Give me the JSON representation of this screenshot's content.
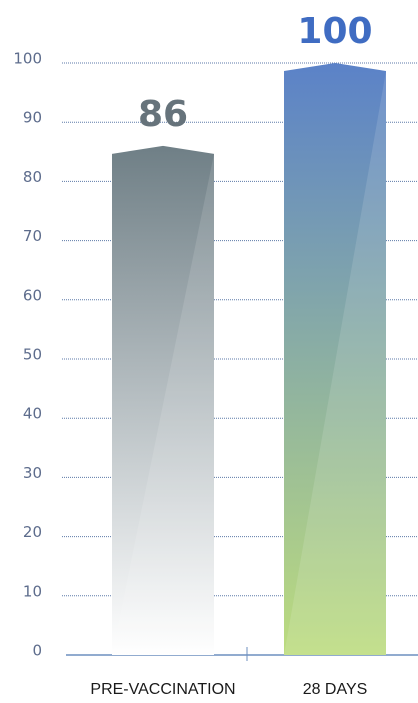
{
  "chart_data": {
    "type": "bar",
    "categories": [
      "PRE-VACCINATION",
      "28 DAYS"
    ],
    "values": [
      86,
      100
    ],
    "bar_gradients": [
      {
        "top": "#6f7f86",
        "bottom": "#ffffff"
      },
      {
        "top": "#5b82c8",
        "bottom": "#bcdc7e"
      }
    ],
    "label_colors": [
      "#66737b",
      "#3f6cc2"
    ],
    "ylim": [
      0,
      100
    ],
    "yticks": [
      0,
      10,
      20,
      30,
      40,
      50,
      60,
      70,
      80,
      90,
      100
    ],
    "grid": true
  }
}
